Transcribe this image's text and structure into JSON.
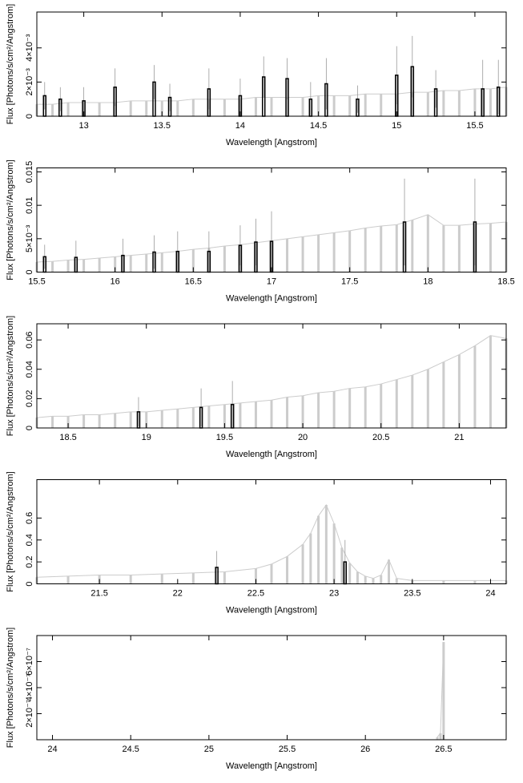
{
  "chart_data": [
    {
      "type": "spectrum",
      "x_label": "Wavelength [Angstrom]",
      "y_label": "Flux [Photons/s/cm²/Angstrom]",
      "xlim": [
        12.7,
        15.7
      ],
      "xticks": [
        13,
        13.5,
        14,
        14.5,
        15,
        15.5
      ],
      "ylim": [
        0,
        0.0061
      ],
      "yticks": [
        0,
        {
          "value": 0.002,
          "label": "2×10⁻³"
        },
        {
          "value": 0.004,
          "label": "4×10⁻³"
        }
      ],
      "series": [
        {
          "color": "#cccccc",
          "x": [
            12.7,
            12.8,
            12.9,
            13.0,
            13.1,
            13.2,
            13.3,
            13.4,
            13.5,
            13.6,
            13.7,
            13.8,
            13.9,
            14.0,
            14.1,
            14.2,
            14.3,
            14.4,
            14.5,
            14.6,
            14.7,
            14.8,
            14.9,
            15.0,
            15.1,
            15.2,
            15.3,
            15.4,
            15.5,
            15.6,
            15.7
          ],
          "values": [
            0.0007,
            0.0007,
            0.0008,
            0.0008,
            0.0008,
            0.0008,
            0.0009,
            0.0009,
            0.0009,
            0.0009,
            0.001,
            0.001,
            0.001,
            0.001,
            0.0011,
            0.0011,
            0.0011,
            0.0011,
            0.0012,
            0.0012,
            0.0012,
            0.0013,
            0.0013,
            0.0013,
            0.0014,
            0.0014,
            0.0015,
            0.0015,
            0.0016,
            0.0016,
            0.0017
          ]
        },
        {
          "color": "#000000",
          "x": [
            12.75,
            12.85,
            13.0,
            13.2,
            13.45,
            13.55,
            13.8,
            14.0,
            14.15,
            14.3,
            14.45,
            14.55,
            14.75,
            15.0,
            15.1,
            15.25,
            15.55,
            15.65
          ],
          "values": [
            0.0012,
            0.001,
            0.0009,
            0.0017,
            0.002,
            0.0011,
            0.0016,
            0.0012,
            0.0023,
            0.0022,
            0.001,
            0.0019,
            0.001,
            0.0024,
            0.0029,
            0.0016,
            0.0016,
            0.0017
          ],
          "errors": [
            0.0008,
            0.0007,
            0.0008,
            0.0011,
            0.001,
            0.0008,
            0.0012,
            0.001,
            0.0012,
            0.0012,
            0.001,
            0.0015,
            0.0008,
            0.0017,
            0.0018,
            0.0011,
            0.0017,
            0.0016
          ]
        }
      ]
    },
    {
      "type": "spectrum",
      "x_label": "Wavelength [Angstrom]",
      "y_label": "Flux [Photons/s/cm²/Angstrom]",
      "xlim": [
        15.5,
        18.5
      ],
      "xticks": [
        15.5,
        16,
        16.5,
        17,
        17.5,
        18,
        18.5
      ],
      "ylim": [
        0,
        0.0156
      ],
      "yticks": [
        0,
        {
          "value": 0.005,
          "label": "5×10⁻³"
        },
        0.01,
        0.015
      ],
      "series": [
        {
          "color": "#cccccc",
          "x": [
            15.5,
            15.6,
            15.7,
            15.8,
            15.9,
            16.0,
            16.1,
            16.2,
            16.3,
            16.4,
            16.5,
            16.6,
            16.7,
            16.8,
            16.9,
            17.0,
            17.1,
            17.2,
            17.3,
            17.4,
            17.5,
            17.6,
            17.7,
            17.8,
            17.9,
            18.0,
            18.1,
            18.2,
            18.3,
            18.4,
            18.5
          ],
          "values": [
            0.0015,
            0.0016,
            0.0018,
            0.0019,
            0.0021,
            0.0023,
            0.0025,
            0.0027,
            0.0029,
            0.0031,
            0.0034,
            0.0036,
            0.0039,
            0.0041,
            0.0044,
            0.0047,
            0.005,
            0.0053,
            0.0056,
            0.0059,
            0.0062,
            0.0066,
            0.0069,
            0.0071,
            0.0078,
            0.0086,
            0.007,
            0.007,
            0.0072,
            0.0073,
            0.0075
          ]
        },
        {
          "color": "#000000",
          "x": [
            15.55,
            15.75,
            16.05,
            16.25,
            16.4,
            16.6,
            16.8,
            16.9,
            17.0,
            17.85,
            18.3
          ],
          "values": [
            0.0023,
            0.0022,
            0.0025,
            0.003,
            0.0031,
            0.0031,
            0.004,
            0.0045,
            0.0046,
            0.0075,
            0.0075
          ],
          "errors": [
            0.0018,
            0.0025,
            0.0025,
            0.0025,
            0.003,
            0.003,
            0.003,
            0.0035,
            0.0045,
            0.0065,
            0.0065
          ]
        }
      ]
    },
    {
      "type": "spectrum",
      "x_label": "Wavelength [Angstrom]",
      "y_label": "Flux [Photons/s/cm²/Angstrom]",
      "xlim": [
        18.3,
        21.3
      ],
      "xticks": [
        18.5,
        19,
        19.5,
        20,
        20.5,
        21
      ],
      "ylim": [
        0,
        0.071
      ],
      "yticks": [
        0,
        0.02,
        0.04,
        0.06
      ],
      "series": [
        {
          "color": "#cccccc",
          "x": [
            18.3,
            18.4,
            18.5,
            18.6,
            18.7,
            18.8,
            18.9,
            19.0,
            19.1,
            19.2,
            19.3,
            19.4,
            19.5,
            19.6,
            19.7,
            19.8,
            19.9,
            20.0,
            20.1,
            20.2,
            20.3,
            20.4,
            20.5,
            20.6,
            20.7,
            20.8,
            20.9,
            21.0,
            21.1,
            21.2,
            21.3
          ],
          "values": [
            0.007,
            0.008,
            0.008,
            0.009,
            0.009,
            0.01,
            0.011,
            0.011,
            0.012,
            0.013,
            0.014,
            0.015,
            0.016,
            0.017,
            0.018,
            0.019,
            0.021,
            0.022,
            0.024,
            0.025,
            0.027,
            0.028,
            0.03,
            0.033,
            0.036,
            0.04,
            0.045,
            0.05,
            0.056,
            0.063,
            0.061
          ]
        },
        {
          "color": "#000000",
          "x": [
            18.95,
            19.35,
            19.55
          ],
          "values": [
            0.011,
            0.014,
            0.016
          ],
          "errors": [
            0.01,
            0.013,
            0.016
          ]
        }
      ]
    },
    {
      "type": "spectrum",
      "x_label": "Wavelength [Angstrom]",
      "y_label": "Flux [Photons/s/cm²/Angstrom]",
      "xlim": [
        21.1,
        24.1
      ],
      "xticks": [
        21.5,
        22,
        22.5,
        23,
        23.5,
        24
      ],
      "ylim": [
        0,
        0.95
      ],
      "yticks": [
        0,
        0.2,
        0.4,
        0.6
      ],
      "series": [
        {
          "color": "#cccccc",
          "x": [
            21.1,
            21.3,
            21.5,
            21.7,
            21.9,
            22.1,
            22.3,
            22.5,
            22.6,
            22.7,
            22.8,
            22.85,
            22.9,
            22.95,
            23.0,
            23.05,
            23.1,
            23.15,
            23.2,
            23.25,
            23.3,
            23.35,
            23.4,
            23.5,
            23.7,
            23.9,
            24.1
          ],
          "values": [
            0.06,
            0.07,
            0.08,
            0.08,
            0.09,
            0.1,
            0.11,
            0.14,
            0.18,
            0.25,
            0.36,
            0.46,
            0.62,
            0.72,
            0.55,
            0.33,
            0.19,
            0.11,
            0.07,
            0.05,
            0.08,
            0.22,
            0.05,
            0.03,
            0.03,
            0.03,
            0.03
          ]
        },
        {
          "color": "#000000",
          "x": [
            22.25,
            23.07
          ],
          "values": [
            0.15,
            0.2
          ],
          "errors": [
            0.15,
            0.2
          ]
        }
      ]
    },
    {
      "type": "spectrum",
      "x_label": "Wavelength [Angstrom]",
      "y_label": "Flux [Photons/s/cm²/Angstrom]",
      "xlim": [
        23.9,
        26.9
      ],
      "xticks": [
        24,
        24.5,
        25,
        25.5,
        26,
        26.5
      ],
      "ylim": [
        0,
        8e-07
      ],
      "yticks": [
        {
          "value": 2e-07,
          "label": "2×10⁻⁷"
        },
        {
          "value": 4e-07,
          "label": "4×10⁻⁷"
        },
        {
          "value": 6e-07,
          "label": "6×10⁻⁷"
        }
      ],
      "series": [
        {
          "color": "#cccccc",
          "x": [
            26.46,
            26.48,
            26.5
          ],
          "values": [
            2e-08,
            5e-08,
            7.5e-07
          ]
        }
      ]
    }
  ]
}
